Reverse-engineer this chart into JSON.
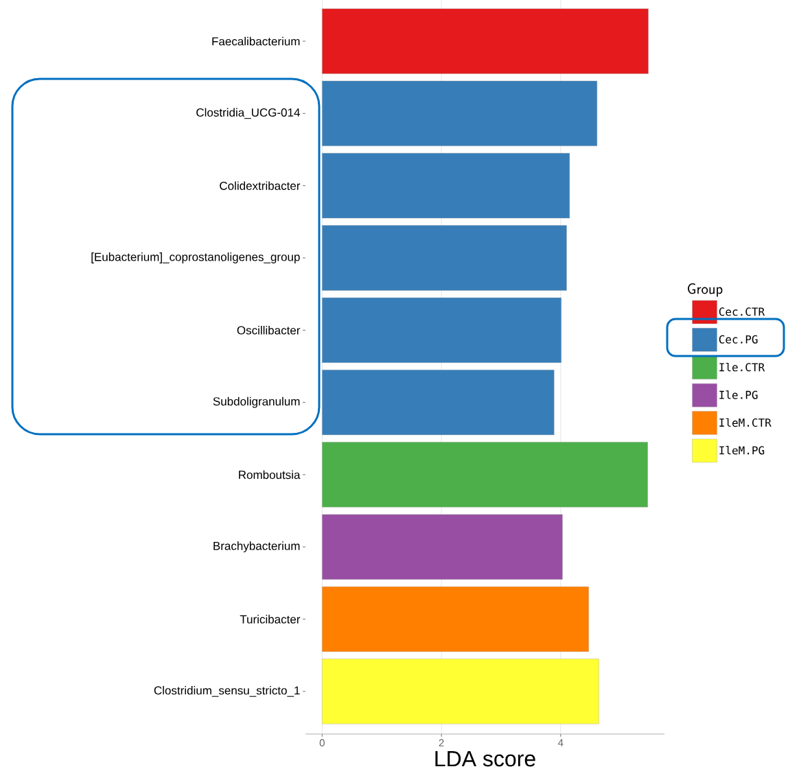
{
  "chart_data": {
    "type": "bar",
    "orientation": "horizontal",
    "xlabel": "LDA score",
    "legend_title": "Group",
    "legend": "right",
    "grid": "x",
    "categories": [
      "Faecalibacterium",
      "Clostridia_UCG-014",
      "Colidextribacter",
      "[Eubacterium]_coprostanoligenes_group",
      "Oscillibacter",
      "Subdoligranulum",
      "Romboutsia",
      "Brachybacterium",
      "Turicibacter",
      "Clostridium_sensu_stricto_1"
    ],
    "series": [
      {
        "name": "Cec.CTR",
        "color": "#e41a1c",
        "values": [
          5.47,
          null,
          null,
          null,
          null,
          null,
          null,
          null,
          null,
          null
        ]
      },
      {
        "name": "Cec.PG",
        "color": "#377eb8",
        "values": [
          null,
          4.61,
          4.15,
          4.1,
          4.01,
          3.89,
          null,
          null,
          null,
          null
        ]
      },
      {
        "name": "Ile.CTR",
        "color": "#4daf4a",
        "values": [
          null,
          null,
          null,
          null,
          null,
          null,
          5.46,
          null,
          null,
          null
        ]
      },
      {
        "name": "Ile.PG",
        "color": "#984ea3",
        "values": [
          null,
          null,
          null,
          null,
          null,
          null,
          null,
          4.03,
          null,
          null
        ]
      },
      {
        "name": "IleM.CTR",
        "color": "#ff7f00",
        "values": [
          null,
          null,
          null,
          null,
          null,
          null,
          null,
          null,
          4.47,
          null
        ]
      },
      {
        "name": "IleM.PG",
        "color": "#ffff33",
        "values": [
          null,
          null,
          null,
          null,
          null,
          null,
          null,
          null,
          null,
          4.64
        ]
      }
    ],
    "xlim": [
      -0.28,
      5.74
    ],
    "xticks": [
      0,
      2,
      4
    ]
  }
}
